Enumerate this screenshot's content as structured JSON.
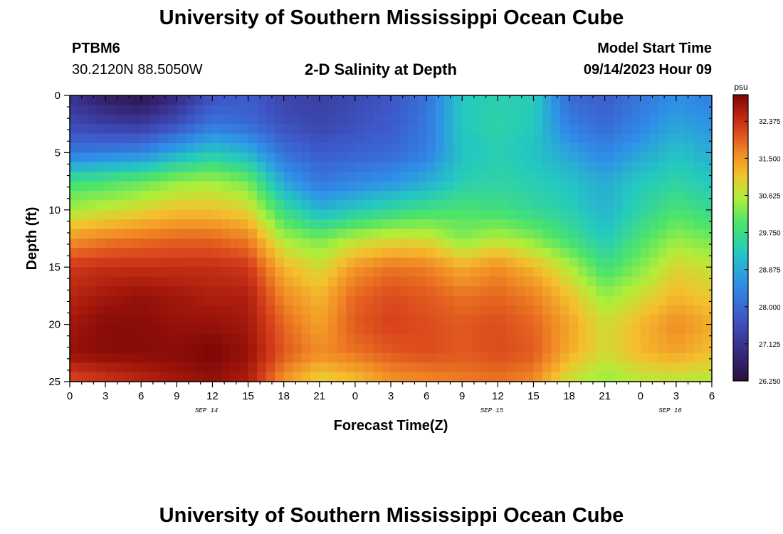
{
  "page": {
    "title": "University of Southern Mississippi Ocean Cube",
    "footer_title": "University of Southern Mississippi Ocean Cube"
  },
  "header": {
    "station": "PTBM6",
    "coords": "30.2120N  88.5050W",
    "model_start_label": "Model Start Time",
    "model_start_value": "09/14/2023 Hour 09"
  },
  "chart_data": {
    "type": "heatmap",
    "title": "2-D Salinity at Depth",
    "xlabel": "Forecast Time(Z)",
    "ylabel": "Depth (ft)",
    "xlim": [
      0,
      54
    ],
    "ylim": [
      25,
      0
    ],
    "x_ticks": [
      0,
      3,
      6,
      9,
      12,
      15,
      18,
      21,
      24,
      27,
      30,
      33,
      36,
      39,
      42,
      45,
      48,
      51,
      54
    ],
    "x_tick_labels": [
      "0",
      "3",
      "6",
      "9",
      "12",
      "15",
      "18",
      "21",
      "0",
      "3",
      "6",
      "9",
      "12",
      "15",
      "18",
      "21",
      "0",
      "3",
      "6"
    ],
    "y_ticks": [
      0,
      5,
      10,
      15,
      20,
      25
    ],
    "y_tick_labels": [
      "0",
      "5",
      "10",
      "15",
      "20",
      "25"
    ],
    "date_labels": [
      {
        "text": "SEP 14",
        "x": 11.5
      },
      {
        "text": "SEP 15",
        "x": 35.5
      },
      {
        "text": "SEP 16",
        "x": 50.5
      }
    ],
    "colorbar": {
      "unit": "psu",
      "min": 26.25,
      "max": 33.0,
      "ticks": [
        26.25,
        27.125,
        28.0,
        28.875,
        29.75,
        30.625,
        31.5,
        32.375
      ],
      "tick_labels": [
        "26.250",
        "27.125",
        "28.000",
        "28.875",
        "29.750",
        "30.625",
        "31.500",
        "32.375"
      ]
    },
    "salinity_grid": {
      "times": [
        0,
        3,
        6,
        9,
        12,
        15,
        18,
        21,
        24,
        27,
        30,
        33,
        36,
        39,
        42,
        45,
        48,
        51,
        54
      ],
      "depths": [
        0,
        2.5,
        5,
        7.5,
        10,
        12.5,
        15,
        17.5,
        20,
        22.5,
        25
      ],
      "values": [
        [
          27.1,
          26.6,
          26.4,
          26.9,
          27.6,
          27.8,
          27.4,
          27.3,
          27.5,
          27.7,
          28.1,
          29.3,
          29.4,
          29.4,
          28.0,
          27.8,
          28.2,
          28.5,
          28.3
        ],
        [
          27.5,
          27.3,
          27.2,
          27.6,
          28.2,
          28.0,
          27.6,
          27.4,
          27.6,
          27.8,
          28.2,
          29.3,
          29.5,
          29.3,
          28.3,
          28.0,
          28.4,
          28.8,
          28.6
        ],
        [
          28.2,
          28.3,
          28.4,
          28.9,
          29.3,
          29.0,
          28.1,
          27.8,
          27.9,
          28.0,
          28.3,
          29.2,
          29.4,
          29.2,
          28.8,
          28.4,
          28.8,
          29.2,
          28.9
        ],
        [
          29.8,
          29.9,
          30.1,
          30.4,
          30.5,
          30.2,
          28.8,
          28.2,
          28.4,
          28.6,
          28.9,
          29.4,
          29.5,
          29.4,
          29.2,
          28.9,
          29.3,
          29.5,
          29.3
        ],
        [
          30.5,
          30.7,
          30.9,
          31.1,
          31.1,
          30.9,
          29.7,
          29.0,
          29.3,
          29.6,
          29.8,
          29.9,
          29.8,
          29.6,
          29.4,
          29.0,
          29.5,
          29.9,
          29.6
        ],
        [
          31.5,
          31.7,
          31.8,
          31.9,
          31.9,
          31.7,
          30.5,
          30.2,
          30.6,
          30.8,
          30.8,
          30.3,
          30.6,
          30.3,
          29.8,
          29.3,
          29.9,
          30.4,
          30.2
        ],
        [
          32.3,
          32.4,
          32.4,
          32.4,
          32.4,
          32.3,
          31.2,
          30.8,
          31.5,
          31.8,
          31.7,
          31.3,
          31.6,
          31.2,
          30.6,
          29.8,
          30.3,
          30.9,
          30.7
        ],
        [
          32.5,
          32.7,
          32.8,
          32.7,
          32.6,
          32.6,
          31.6,
          31.2,
          31.9,
          32.1,
          32.0,
          31.8,
          31.9,
          31.7,
          31.1,
          30.4,
          30.8,
          31.2,
          31.0
        ],
        [
          32.7,
          32.9,
          32.9,
          32.8,
          32.8,
          32.7,
          31.9,
          31.4,
          32.0,
          32.2,
          32.1,
          32.0,
          32.1,
          31.9,
          31.4,
          30.8,
          31.2,
          31.6,
          31.3
        ],
        [
          32.8,
          32.9,
          32.9,
          32.9,
          33.0,
          32.8,
          32.0,
          31.6,
          31.8,
          32.0,
          32.1,
          32.0,
          32.1,
          32.0,
          31.3,
          30.8,
          31.2,
          31.4,
          31.1
        ],
        [
          32.1,
          32.3,
          32.5,
          32.7,
          32.8,
          32.6,
          31.5,
          30.9,
          31.1,
          31.5,
          31.6,
          31.7,
          31.8,
          31.6,
          30.7,
          30.4,
          30.6,
          30.6,
          30.6
        ]
      ]
    }
  }
}
